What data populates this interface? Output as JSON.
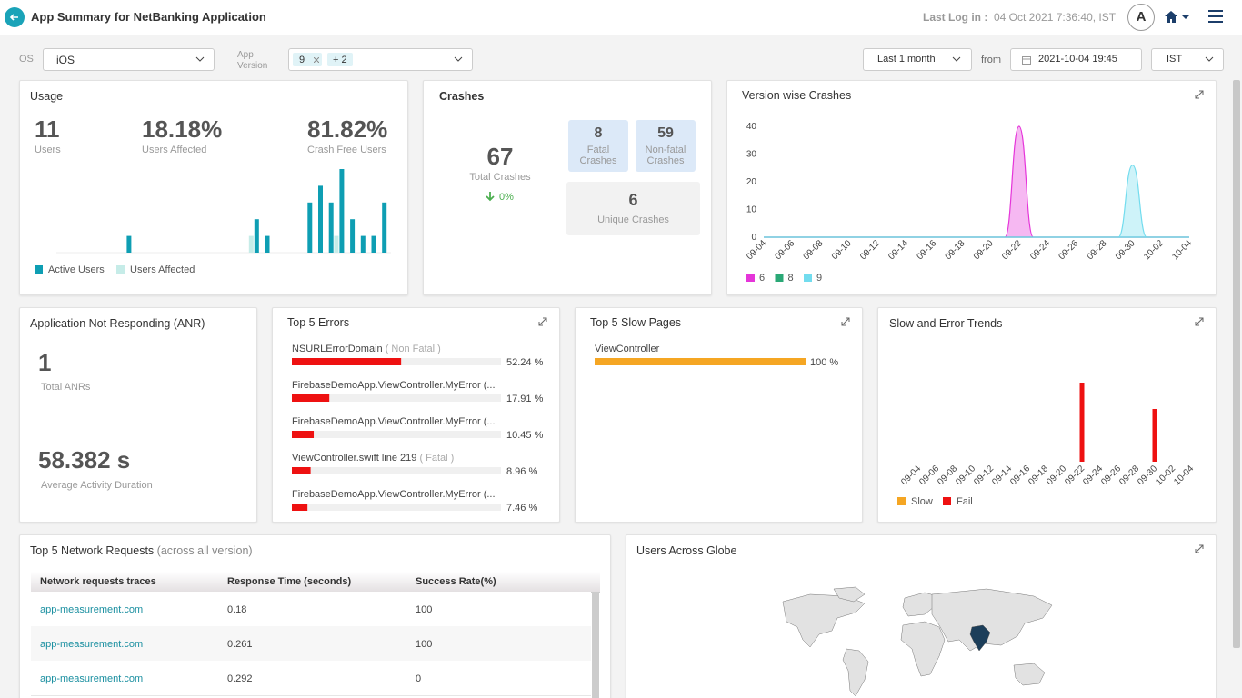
{
  "header": {
    "title": "App Summary for NetBanking Application",
    "last_login_label": "Last Log in :",
    "last_login": "04 Oct 2021 7:36:40, IST",
    "avatar": "A"
  },
  "filters": {
    "os_label": "OS",
    "os": "iOS",
    "app_version_label": [
      "App",
      "Version"
    ],
    "version_chips": [
      "9",
      "+ 2"
    ],
    "period": "Last 1 month",
    "from_label": "from",
    "from": "2021-10-04 19:45",
    "timezone": "IST"
  },
  "usage": {
    "title": "Usage",
    "stats": [
      {
        "value": "11",
        "label": "Users"
      },
      {
        "value": "18.18%",
        "label": "Users Affected"
      },
      {
        "value": "81.82%",
        "label": "Crash Free Users"
      }
    ],
    "chart": {
      "type": "bar",
      "series": [
        {
          "name": "Active Users",
          "color": "#0e9eb3",
          "values": [
            0,
            0,
            0,
            0,
            0,
            0,
            0,
            1,
            0,
            0,
            0,
            0,
            0,
            0,
            0,
            0,
            0,
            0,
            0,
            2,
            1,
            0,
            0,
            0,
            3,
            4,
            3,
            5,
            2,
            1,
            1,
            3
          ]
        },
        {
          "name": "Users Affected",
          "color": "#c6ece8",
          "values": [
            0,
            0,
            0,
            0,
            0,
            0,
            0,
            0,
            0,
            0,
            0,
            0,
            0,
            0,
            0,
            0,
            0,
            0,
            0,
            1,
            0,
            0,
            0,
            0,
            0,
            0,
            0,
            1,
            0,
            0,
            0,
            0
          ]
        }
      ]
    }
  },
  "crashes": {
    "title": "Crashes",
    "total": 67,
    "total_label": "Total Crashes",
    "trend": "0%",
    "fatal": 8,
    "fatal_label": "Fatal Crashes",
    "non_fatal": 59,
    "non_fatal_label": "Non-fatal Crashes",
    "unique": 6,
    "unique_label": "Unique Crashes"
  },
  "version_crashes": {
    "title": "Version wise Crashes",
    "type": "line",
    "ylim": [
      0,
      40
    ],
    "yticks": [
      0,
      10,
      20,
      30,
      40
    ],
    "grid": false,
    "categories": [
      "09-04",
      null,
      "09-06",
      null,
      "09-08",
      null,
      "09-10",
      null,
      "09-12",
      null,
      "09-14",
      null,
      "09-16",
      null,
      "09-18",
      null,
      "09-20",
      null,
      "09-22",
      null,
      "09-24",
      null,
      "09-26",
      null,
      "09-28",
      null,
      "09-30",
      null,
      "10-02",
      null,
      "10-04"
    ],
    "series": [
      {
        "name": "6",
        "color": "#e535d9",
        "values": [
          0,
          0,
          0,
          0,
          0,
          0,
          0,
          0,
          0,
          0,
          0,
          0,
          0,
          0,
          0,
          0,
          0,
          0,
          40,
          0,
          0,
          0,
          0,
          0,
          0,
          0,
          0,
          0,
          0,
          0,
          0
        ]
      },
      {
        "name": "8",
        "color": "#2aa876",
        "values": [
          0,
          0,
          0,
          0,
          0,
          0,
          0,
          0,
          0,
          0,
          0,
          0,
          0,
          0,
          0,
          0,
          0,
          0,
          0,
          0,
          0,
          0,
          0,
          0,
          0,
          0,
          0,
          0,
          0,
          0,
          0
        ]
      },
      {
        "name": "9",
        "color": "#72dcee",
        "values": [
          0,
          0,
          0,
          0,
          0,
          0,
          0,
          0,
          0,
          0,
          0,
          0,
          0,
          0,
          0,
          0,
          0,
          0,
          0,
          0,
          0,
          0,
          0,
          0,
          0,
          0,
          26,
          0,
          0,
          0,
          0
        ]
      }
    ]
  },
  "anr": {
    "title": "Application Not Responding (ANR)",
    "total": 1,
    "total_label": "Total ANRs",
    "avg": "58.382 s",
    "avg_label": "Average Activity Duration"
  },
  "top_errors": {
    "title": "Top 5 Errors",
    "items": [
      {
        "name": "NSURLErrorDomain",
        "kind": "( Non Fatal )",
        "value": 52.24,
        "value_label": "52.24 %"
      },
      {
        "name": "FirebaseDemoApp.ViewController.MyError (...",
        "value": 17.91,
        "value_label": "17.91 %"
      },
      {
        "name": "FirebaseDemoApp.ViewController.MyError (...",
        "value": 10.45,
        "value_label": "10.45 %"
      },
      {
        "name": "ViewController.swift line 219",
        "kind": "( Fatal )",
        "value": 8.96,
        "value_label": "8.96 %"
      },
      {
        "name": "FirebaseDemoApp.ViewController.MyError (...",
        "value": 7.46,
        "value_label": "7.46 %"
      }
    ]
  },
  "slow_pages": {
    "title": "Top 5 Slow Pages",
    "items": [
      {
        "name": "ViewController",
        "value": 100,
        "value_label": "100 %"
      }
    ]
  },
  "trends": {
    "title": "Slow and Error Trends",
    "type": "bar",
    "categories": [
      "09-04",
      null,
      "09-06",
      null,
      "09-08",
      null,
      "09-10",
      null,
      "09-12",
      null,
      "09-14",
      null,
      "09-16",
      null,
      "09-18",
      null,
      "09-20",
      null,
      "09-22",
      null,
      "09-24",
      null,
      "09-26",
      null,
      "09-28",
      null,
      "09-30",
      null,
      "10-02",
      null,
      "10-04"
    ],
    "series": [
      {
        "name": "Slow",
        "color": "#f5a623",
        "values": [
          0,
          0,
          0,
          0,
          0,
          0,
          0,
          0,
          0,
          0,
          0,
          0,
          0,
          0,
          0,
          0,
          0,
          0,
          0,
          0,
          0,
          0,
          0,
          0,
          0,
          0,
          0,
          0,
          0,
          0,
          0
        ]
      },
      {
        "name": "Fail",
        "color": "#ee1111",
        "values": [
          0,
          0,
          0,
          0,
          0,
          0,
          0,
          0,
          0,
          0,
          0,
          0,
          0,
          0,
          0,
          0,
          0,
          0,
          3,
          0,
          0,
          0,
          0,
          0,
          0,
          0,
          2,
          0,
          0,
          0,
          0
        ]
      }
    ]
  },
  "network": {
    "title": "Top 5 Network Requests",
    "subtitle": "(across all version)",
    "columns": [
      "Network requests traces",
      "Response Time (seconds)",
      "Success Rate(%)"
    ],
    "rows": [
      [
        "app-measurement.com",
        0.18,
        100
      ],
      [
        "app-measurement.com",
        0.261,
        100
      ],
      [
        "app-measurement.com",
        0.292,
        0
      ]
    ]
  },
  "globe": {
    "title": "Users Across Globe"
  }
}
